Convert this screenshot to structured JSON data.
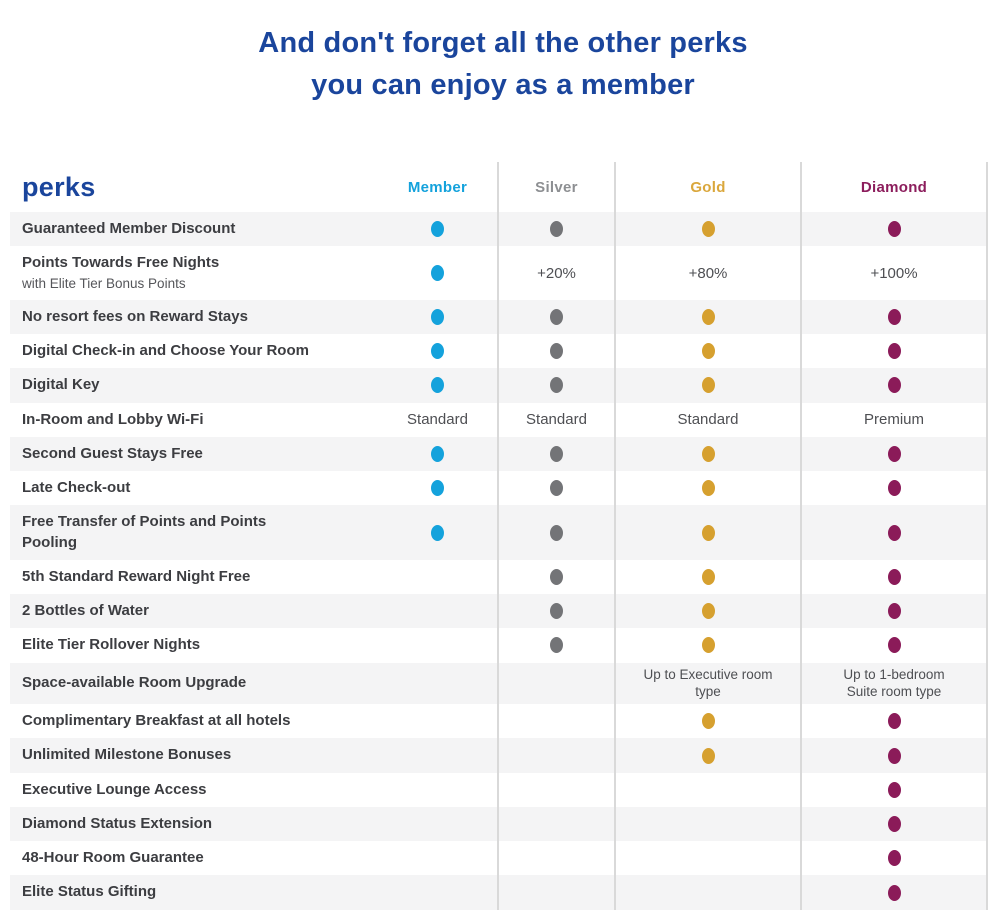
{
  "title": {
    "line1": "And don't forget all the other perks",
    "line2": "you can enjoy as a member"
  },
  "table": {
    "perks_label": "perks",
    "tiers": [
      {
        "name": "Member",
        "color": "#14A2DC",
        "dot_color": "#14A2DC"
      },
      {
        "name": "Silver",
        "color": "#8D8F92",
        "dot_color": "#737477"
      },
      {
        "name": "Gold",
        "color": "#DAA73C",
        "dot_color": "#D6A02F"
      },
      {
        "name": "Diamond",
        "color": "#8C1D5C",
        "dot_color": "#8B1B59"
      }
    ],
    "rows": [
      {
        "label": "Guaranteed Member Discount",
        "cells": [
          "dot",
          "dot",
          "dot",
          "dot"
        ]
      },
      {
        "label": "Points Towards Free Nights",
        "sublabel": "with Elite Tier Bonus Points",
        "cells": [
          "dot",
          "+20%",
          "+80%",
          "+100%"
        ]
      },
      {
        "label": "No resort fees on Reward Stays",
        "cells": [
          "dot",
          "dot",
          "dot",
          "dot"
        ]
      },
      {
        "label": "Digital Check-in and Choose Your Room",
        "cells": [
          "dot",
          "dot",
          "dot",
          "dot"
        ]
      },
      {
        "label": "Digital Key",
        "cells": [
          "dot",
          "dot",
          "dot",
          "dot"
        ]
      },
      {
        "label": "In-Room and Lobby Wi-Fi",
        "cells": [
          "Standard",
          "Standard",
          "Standard",
          "Premium"
        ]
      },
      {
        "label": "Second Guest Stays Free",
        "cells": [
          "dot",
          "dot",
          "dot",
          "dot"
        ]
      },
      {
        "label": "Late Check-out",
        "cells": [
          "dot",
          "dot",
          "dot",
          "dot"
        ]
      },
      {
        "label": "Free Transfer of Points and Points Pooling",
        "cells": [
          "dot",
          "dot",
          "dot",
          "dot"
        ]
      },
      {
        "label": "5th Standard Reward Night Free",
        "cells": [
          "",
          "dot",
          "dot",
          "dot"
        ]
      },
      {
        "label": "2 Bottles of Water",
        "cells": [
          "",
          "dot",
          "dot",
          "dot"
        ]
      },
      {
        "label": "Elite Tier Rollover Nights",
        "cells": [
          "",
          "dot",
          "dot",
          "dot"
        ]
      },
      {
        "label": "Space-available Room Upgrade",
        "cells": [
          "",
          "",
          "Up to Executive room type",
          "Up to 1-bedroom Suite room type"
        ]
      },
      {
        "label": "Complimentary Breakfast at all hotels",
        "cells": [
          "",
          "",
          "dot",
          "dot"
        ]
      },
      {
        "label": "Unlimited Milestone Bonuses",
        "cells": [
          "",
          "",
          "dot",
          "dot"
        ]
      },
      {
        "label": "Executive Lounge Access",
        "cells": [
          "",
          "",
          "",
          "dot"
        ]
      },
      {
        "label": "Diamond Status Extension",
        "cells": [
          "",
          "",
          "",
          "dot"
        ]
      },
      {
        "label": "48-Hour Room Guarantee",
        "cells": [
          "",
          "",
          "",
          "dot"
        ]
      },
      {
        "label": "Elite Status Gifting",
        "cells": [
          "",
          "",
          "",
          "dot"
        ]
      }
    ]
  }
}
